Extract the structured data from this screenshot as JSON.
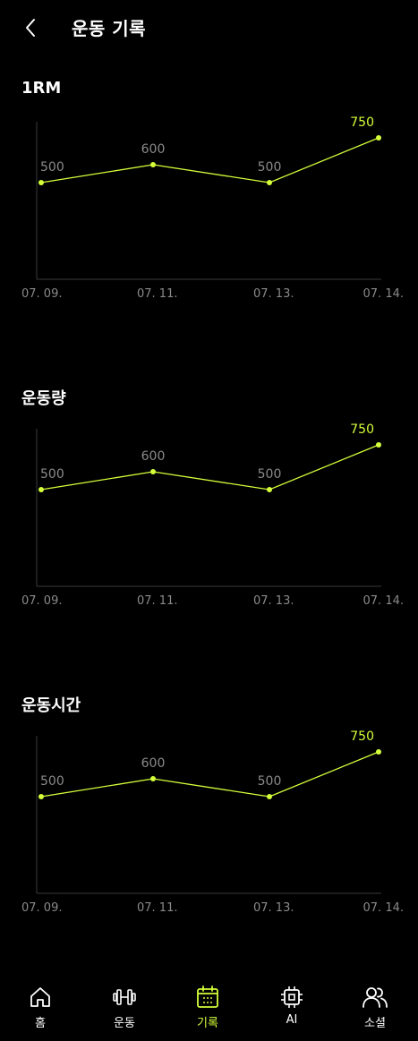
{
  "header": {
    "title": "운동 기록",
    "back_icon": "chevron-left-icon"
  },
  "colors": {
    "accent": "#d4ff3a",
    "muted": "#8a8a8a",
    "axis": "#3a3a3a",
    "background": "#000000"
  },
  "sections": [
    {
      "title": "1RM"
    },
    {
      "title": "운동량"
    },
    {
      "title": "운동시간"
    }
  ],
  "chart_data": [
    {
      "type": "line",
      "title": "1RM",
      "categories": [
        "07. 09.",
        "07. 11.",
        "07. 13.",
        "07. 14."
      ],
      "values": [
        500,
        600,
        500,
        750
      ],
      "data_labels": [
        "500",
        "600",
        "500",
        "750"
      ],
      "ylim": [
        0,
        750
      ],
      "grid": false
    },
    {
      "type": "line",
      "title": "운동량",
      "categories": [
        "07. 09.",
        "07. 11.",
        "07. 13.",
        "07. 14."
      ],
      "values": [
        500,
        600,
        500,
        750
      ],
      "data_labels": [
        "500",
        "600",
        "500",
        "750"
      ],
      "ylim": [
        0,
        750
      ],
      "grid": false
    },
    {
      "type": "line",
      "title": "운동시간",
      "categories": [
        "07. 09.",
        "07. 11.",
        "07. 13.",
        "07. 14."
      ],
      "values": [
        500,
        600,
        500,
        750
      ],
      "data_labels": [
        "500",
        "600",
        "500",
        "750"
      ],
      "ylim": [
        0,
        750
      ],
      "grid": false
    }
  ],
  "tabbar": {
    "items": [
      {
        "label": "홈",
        "icon": "home-icon",
        "active": false
      },
      {
        "label": "운동",
        "icon": "dumbbell-icon",
        "active": false
      },
      {
        "label": "기록",
        "icon": "calendar-icon",
        "active": true
      },
      {
        "label": "AI",
        "icon": "chip-icon",
        "active": false
      },
      {
        "label": "소셜",
        "icon": "users-icon",
        "active": false
      }
    ]
  }
}
